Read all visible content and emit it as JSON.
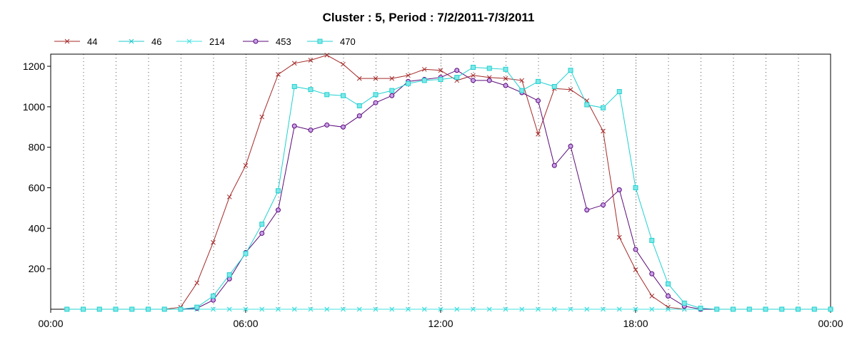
{
  "chart_data": {
    "type": "line",
    "title": "Cluster : 5, Period : 7/2/2011-7/3/2011",
    "xlabel": "",
    "ylabel": "",
    "x_tick_labels": [
      "00:00",
      "06:00",
      "12:00",
      "18:00",
      "00:00"
    ],
    "y_ticks": [
      200,
      400,
      600,
      800,
      1000,
      1200
    ],
    "ylim": [
      0,
      1260
    ],
    "xlim_hours": [
      0,
      24
    ],
    "grid": "vertical dotted",
    "legend_position": "top-left",
    "series": [
      {
        "name": "44",
        "color": "#a52a2a",
        "marker": "x",
        "x": [
          0.5,
          1,
          1.5,
          2,
          2.5,
          3,
          3.5,
          4,
          4.5,
          5,
          5.5,
          6,
          6.5,
          7,
          7.5,
          8,
          8.5,
          9,
          9.5,
          10,
          10.5,
          11,
          11.5,
          12,
          12.5,
          13,
          13.5,
          14,
          14.5,
          15,
          15.5,
          16,
          16.5,
          17,
          17.5,
          18,
          18.5,
          19,
          19.5,
          20,
          20.5,
          21,
          21.5,
          22,
          22.5,
          23,
          23.5,
          24
        ],
        "values": [
          0,
          0,
          0,
          0,
          0,
          0,
          0,
          10,
          130,
          330,
          555,
          710,
          950,
          1160,
          1215,
          1230,
          1255,
          1210,
          1140,
          1140,
          1140,
          1155,
          1185,
          1180,
          1130,
          1155,
          1145,
          1140,
          1130,
          865,
          1090,
          1085,
          1030,
          880,
          355,
          195,
          65,
          10,
          0,
          0,
          0,
          0,
          0,
          0,
          0,
          0,
          0,
          0
        ]
      },
      {
        "name": "46",
        "color": "#20c8c8",
        "marker": "asterisk",
        "x": [
          0.5,
          1,
          1.5,
          2,
          2.5,
          3,
          3.5,
          4,
          4.5,
          5,
          5.5,
          6,
          6.5,
          7,
          7.5,
          8,
          8.5,
          9,
          9.5,
          10,
          10.5,
          11,
          11.5,
          12,
          12.5,
          13,
          13.5,
          14,
          14.5,
          15,
          15.5,
          16,
          16.5,
          17,
          17.5,
          18,
          18.5,
          19,
          19.5,
          20,
          20.5,
          21,
          21.5,
          22,
          22.5,
          23,
          23.5,
          24
        ],
        "values": [
          0,
          0,
          0,
          0,
          0,
          0,
          0,
          0,
          0,
          0,
          0,
          0,
          0,
          0,
          0,
          0,
          0,
          0,
          0,
          0,
          0,
          0,
          0,
          0,
          0,
          0,
          0,
          0,
          0,
          0,
          0,
          0,
          0,
          0,
          0,
          0,
          0,
          0,
          0,
          0,
          0,
          0,
          0,
          0,
          0,
          0,
          0,
          0
        ]
      },
      {
        "name": "214",
        "color": "#40e0e0",
        "marker": "x",
        "x": [
          0.5,
          1,
          1.5,
          2,
          2.5,
          3,
          3.5,
          4,
          4.5,
          5,
          5.5,
          6,
          6.5,
          7,
          7.5,
          8,
          8.5,
          9,
          9.5,
          10,
          10.5,
          11,
          11.5,
          12,
          12.5,
          13,
          13.5,
          14,
          14.5,
          15,
          15.5,
          16,
          16.5,
          17,
          17.5,
          18,
          18.5,
          19,
          19.5,
          20,
          20.5,
          21,
          21.5,
          22,
          22.5,
          23,
          23.5,
          24
        ],
        "values": [
          0,
          0,
          0,
          0,
          0,
          0,
          0,
          0,
          0,
          0,
          0,
          0,
          0,
          0,
          0,
          0,
          0,
          0,
          0,
          0,
          0,
          0,
          0,
          0,
          0,
          0,
          0,
          0,
          0,
          0,
          0,
          0,
          0,
          0,
          0,
          0,
          0,
          0,
          0,
          0,
          0,
          0,
          0,
          0,
          0,
          0,
          0,
          0
        ]
      },
      {
        "name": "453",
        "color": "#5a0a78",
        "marker": "circle",
        "fill": "#c8a0e8",
        "x": [
          0.5,
          1,
          1.5,
          2,
          2.5,
          3,
          3.5,
          4,
          4.5,
          5,
          5.5,
          6,
          6.5,
          7,
          7.5,
          8,
          8.5,
          9,
          9.5,
          10,
          10.5,
          11,
          11.5,
          12,
          12.5,
          13,
          13.5,
          14,
          14.5,
          15,
          15.5,
          16,
          16.5,
          17,
          17.5,
          18,
          18.5,
          19,
          19.5,
          20,
          20.5,
          21,
          21.5,
          22,
          22.5,
          23,
          23.5,
          24
        ],
        "values": [
          0,
          0,
          0,
          0,
          0,
          0,
          0,
          0,
          5,
          45,
          150,
          280,
          375,
          490,
          905,
          885,
          910,
          900,
          955,
          1020,
          1055,
          1125,
          1135,
          1145,
          1180,
          1130,
          1130,
          1105,
          1070,
          1030,
          710,
          805,
          490,
          515,
          590,
          295,
          175,
          65,
          15,
          0,
          0,
          0,
          0,
          0,
          0,
          0,
          0,
          0
        ]
      },
      {
        "name": "470",
        "color": "#20d0d0",
        "marker": "square",
        "fill": "#80e8e8",
        "x": [
          0.5,
          1,
          1.5,
          2,
          2.5,
          3,
          3.5,
          4,
          4.5,
          5,
          5.5,
          6,
          6.5,
          7,
          7.5,
          8,
          8.5,
          9,
          9.5,
          10,
          10.5,
          11,
          11.5,
          12,
          12.5,
          13,
          13.5,
          14,
          14.5,
          15,
          15.5,
          16,
          16.5,
          17,
          17.5,
          18,
          18.5,
          19,
          19.5,
          20,
          20.5,
          21,
          21.5,
          22,
          22.5,
          23,
          23.5,
          24
        ],
        "values": [
          0,
          0,
          0,
          0,
          0,
          0,
          0,
          0,
          10,
          65,
          170,
          275,
          420,
          585,
          1100,
          1085,
          1060,
          1055,
          1005,
          1060,
          1080,
          1115,
          1130,
          1135,
          1145,
          1195,
          1190,
          1185,
          1080,
          1125,
          1100,
          1180,
          1010,
          995,
          1075,
          600,
          340,
          125,
          30,
          5,
          0,
          0,
          0,
          0,
          0,
          0,
          0,
          0
        ]
      }
    ]
  }
}
